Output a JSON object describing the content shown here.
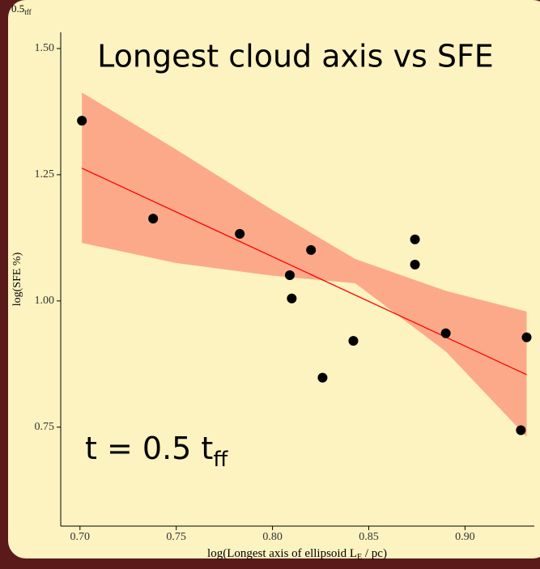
{
  "chart_data": {
    "type": "scatter",
    "title": "Longest cloud axis vs SFE",
    "corner_label": {
      "main": "0.5",
      "sub": "tff"
    },
    "annotation": {
      "main": "t = 0.5 t",
      "sub": "ff"
    },
    "x_label": {
      "before": "log(Longest axis of ellipsoid L",
      "sub": "E",
      "after": " / pc)"
    },
    "y_label": "log(SFE %)",
    "xlim": [
      0.69,
      0.936
    ],
    "ylim": [
      0.554,
      1.532
    ],
    "xticks": [
      {
        "value": 0.7,
        "label": "0.70"
      },
      0.75,
      {
        "value": 0.8,
        "label": "0.80"
      },
      0.85,
      {
        "value": 0.9,
        "label": "0.90"
      }
    ],
    "yticks": [
      0.75,
      {
        "value": 1.0,
        "label": "1.00"
      },
      1.25,
      {
        "value": 1.5,
        "label": "1.50"
      }
    ],
    "series": [
      {
        "color": "#000000",
        "x": [
          0.701,
          0.738,
          0.783,
          0.809,
          0.82,
          0.81,
          0.826,
          0.842,
          0.874,
          0.874,
          0.89,
          0.932,
          0.929
        ],
        "values": [
          1.357,
          1.163,
          1.133,
          1.051,
          1.101,
          1.005,
          0.848,
          0.921,
          1.122,
          1.072,
          0.936,
          0.928,
          0.744
        ]
      }
    ],
    "fit": {
      "color": "#ff0000",
      "x": [
        0.701,
        0.932
      ],
      "values": [
        1.263,
        0.854
      ]
    },
    "band": {
      "color": "#fca98a",
      "x": [
        0.701,
        0.75,
        0.8,
        0.843,
        0.89,
        0.932
      ],
      "upper": [
        1.413,
        1.3,
        1.18,
        1.083,
        1.02,
        0.979
      ],
      "lower": [
        1.115,
        1.075,
        1.05,
        1.035,
        0.9,
        0.731
      ]
    }
  }
}
